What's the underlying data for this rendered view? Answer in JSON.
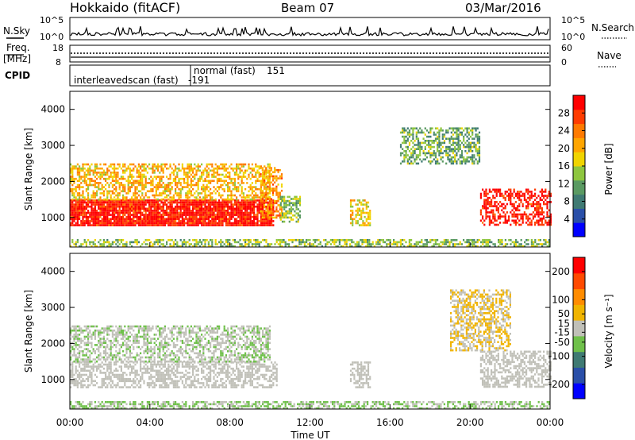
{
  "header": {
    "radar_title": "Hokkaido (fitACF)",
    "beam": "Beam 07",
    "date": "03/Mar/2016"
  },
  "top_panels": {
    "nsky_label": "N.Sky",
    "nsearch_label": "N.Search",
    "freq_label": "Freq.",
    "freq_unit": "[MHz]",
    "nave_label": "Nave",
    "cpid_label": "CPID",
    "noise_ticks_left": [
      "10^5",
      "10^0"
    ],
    "noise_ticks_right": [
      "10^5",
      "10^0"
    ],
    "freq_ticks": [
      "18",
      "8"
    ],
    "nave_ticks": [
      "60",
      "0"
    ],
    "cpid_entries": [
      {
        "name": "interleavedscan (fast)",
        "id": "-191",
        "start": "06:00"
      },
      {
        "name": "normal (fast)",
        "id": "151",
        "start": "06:00"
      }
    ]
  },
  "colors": {
    "power_scale": [
      "#0000ff",
      "#2a4fa8",
      "#3f7a73",
      "#5a9a62",
      "#8ec63f",
      "#f0d400",
      "#ffa500",
      "#ff7a00",
      "#ff3c00",
      "#ff0000"
    ],
    "velocity_scale": [
      "#0000ff",
      "#2a4fa8",
      "#3f7a73",
      "#6fc04a",
      "#c0c0b8",
      "#f0b400",
      "#ff8c00",
      "#ff4a00",
      "#ff0000"
    ]
  },
  "chart_data": [
    {
      "type": "heatmap",
      "panel": "power",
      "ylabel": "Slant Range [km]",
      "xlabel": "Time UT",
      "x_ticks": [
        "00:00",
        "04:00",
        "08:00",
        "12:00",
        "16:00",
        "20:00",
        "00:00"
      ],
      "y_ticks": [
        "1000",
        "2000",
        "3000",
        "4000"
      ],
      "ylim": [
        180,
        4500
      ],
      "colorbar_label": "Power [dB]",
      "colorbar_ticks": [
        "4",
        "8",
        "12",
        "16",
        "20",
        "24",
        "28"
      ],
      "colorbar_range": [
        0,
        32
      ],
      "regions": [
        {
          "t0": 0.0,
          "t1": 10.2,
          "r0": 800,
          "r1": 1500,
          "level": 30
        },
        {
          "t0": 0.0,
          "t1": 10.0,
          "r0": 1500,
          "r1": 2500,
          "level": 20
        },
        {
          "t0": 9.5,
          "t1": 10.6,
          "r0": 1000,
          "r1": 2400,
          "level": 22
        },
        {
          "t0": 10.5,
          "t1": 11.5,
          "r0": 900,
          "r1": 1600,
          "level": 14
        },
        {
          "t0": 14.0,
          "t1": 15.0,
          "r0": 800,
          "r1": 1500,
          "level": 18
        },
        {
          "t0": 16.5,
          "t1": 20.5,
          "r0": 2500,
          "r1": 3500,
          "level": 12
        },
        {
          "t0": 20.5,
          "t1": 24.0,
          "r0": 800,
          "r1": 1800,
          "level": 30
        },
        {
          "t0": 0.0,
          "t1": 24.0,
          "r0": 200,
          "r1": 400,
          "level": 14
        }
      ]
    },
    {
      "type": "heatmap",
      "panel": "velocity",
      "ylabel": "Slant Range [km]",
      "xlabel": "Time UT",
      "x_ticks": [
        "00:00",
        "04:00",
        "08:00",
        "12:00",
        "16:00",
        "20:00",
        "00:00"
      ],
      "y_ticks": [
        "1000",
        "2000",
        "3000",
        "4000"
      ],
      "ylim": [
        180,
        4500
      ],
      "colorbar_label": "Velocity [m s⁻¹]",
      "colorbar_ticks": [
        "200",
        "100",
        "50",
        "15",
        "-15",
        "-50",
        "-100",
        "-200"
      ],
      "colorbar_range": [
        -250,
        250
      ],
      "regions": [
        {
          "t0": 0.0,
          "t1": 10.3,
          "r0": 800,
          "r1": 1500,
          "level": 0
        },
        {
          "t0": 0.0,
          "t1": 10.0,
          "r0": 1500,
          "r1": 2500,
          "level": -20
        },
        {
          "t0": 14.0,
          "t1": 15.0,
          "r0": 800,
          "r1": 1500,
          "level": 0
        },
        {
          "t0": 19.0,
          "t1": 22.0,
          "r0": 1800,
          "r1": 3500,
          "level": 30
        },
        {
          "t0": 20.5,
          "t1": 24.0,
          "r0": 800,
          "r1": 1800,
          "level": 0
        },
        {
          "t0": 0.0,
          "t1": 24.0,
          "r0": 200,
          "r1": 400,
          "level": -30
        }
      ]
    }
  ]
}
